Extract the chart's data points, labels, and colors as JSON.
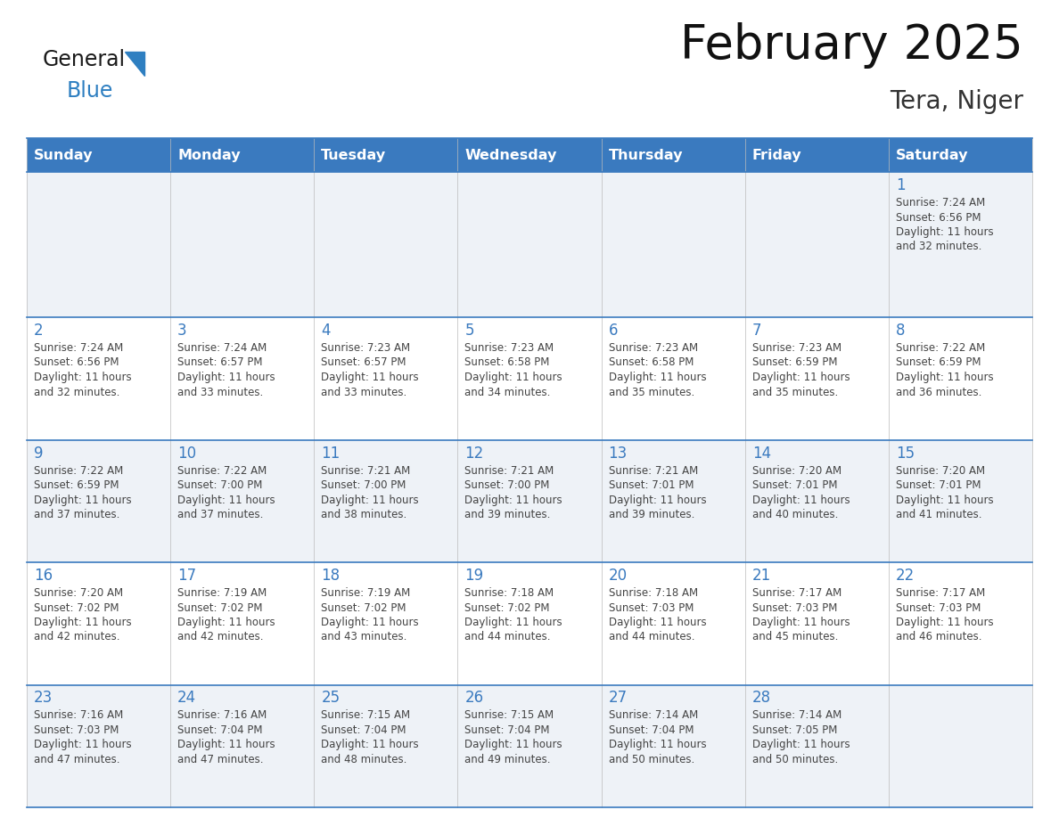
{
  "title": "February 2025",
  "subtitle": "Tera, Niger",
  "days_of_week": [
    "Sunday",
    "Monday",
    "Tuesday",
    "Wednesday",
    "Thursday",
    "Friday",
    "Saturday"
  ],
  "header_bg": "#3a7abf",
  "header_text": "#ffffff",
  "cell_bg_odd": "#eef2f7",
  "cell_bg_even": "#ffffff",
  "border_color": "#3a7abf",
  "day_number_color": "#3a7abf",
  "text_color": "#444444",
  "logo_black": "#1a1a1a",
  "logo_blue": "#2e7fc1",
  "calendar_data": [
    [
      null,
      null,
      null,
      null,
      null,
      null,
      1
    ],
    [
      2,
      3,
      4,
      5,
      6,
      7,
      8
    ],
    [
      9,
      10,
      11,
      12,
      13,
      14,
      15
    ],
    [
      16,
      17,
      18,
      19,
      20,
      21,
      22
    ],
    [
      23,
      24,
      25,
      26,
      27,
      28,
      null
    ]
  ],
  "sunrise_data": {
    "1": "7:24 AM",
    "2": "7:24 AM",
    "3": "7:24 AM",
    "4": "7:23 AM",
    "5": "7:23 AM",
    "6": "7:23 AM",
    "7": "7:23 AM",
    "8": "7:22 AM",
    "9": "7:22 AM",
    "10": "7:22 AM",
    "11": "7:21 AM",
    "12": "7:21 AM",
    "13": "7:21 AM",
    "14": "7:20 AM",
    "15": "7:20 AM",
    "16": "7:20 AM",
    "17": "7:19 AM",
    "18": "7:19 AM",
    "19": "7:18 AM",
    "20": "7:18 AM",
    "21": "7:17 AM",
    "22": "7:17 AM",
    "23": "7:16 AM",
    "24": "7:16 AM",
    "25": "7:15 AM",
    "26": "7:15 AM",
    "27": "7:14 AM",
    "28": "7:14 AM"
  },
  "sunset_data": {
    "1": "6:56 PM",
    "2": "6:56 PM",
    "3": "6:57 PM",
    "4": "6:57 PM",
    "5": "6:58 PM",
    "6": "6:58 PM",
    "7": "6:59 PM",
    "8": "6:59 PM",
    "9": "6:59 PM",
    "10": "7:00 PM",
    "11": "7:00 PM",
    "12": "7:00 PM",
    "13": "7:01 PM",
    "14": "7:01 PM",
    "15": "7:01 PM",
    "16": "7:02 PM",
    "17": "7:02 PM",
    "18": "7:02 PM",
    "19": "7:02 PM",
    "20": "7:03 PM",
    "21": "7:03 PM",
    "22": "7:03 PM",
    "23": "7:03 PM",
    "24": "7:04 PM",
    "25": "7:04 PM",
    "26": "7:04 PM",
    "27": "7:04 PM",
    "28": "7:05 PM"
  },
  "daylight_data": {
    "1": "11 hours and 32 minutes.",
    "2": "11 hours and 32 minutes.",
    "3": "11 hours and 33 minutes.",
    "4": "11 hours and 33 minutes.",
    "5": "11 hours and 34 minutes.",
    "6": "11 hours and 35 minutes.",
    "7": "11 hours and 35 minutes.",
    "8": "11 hours and 36 minutes.",
    "9": "11 hours and 37 minutes.",
    "10": "11 hours and 37 minutes.",
    "11": "11 hours and 38 minutes.",
    "12": "11 hours and 39 minutes.",
    "13": "11 hours and 39 minutes.",
    "14": "11 hours and 40 minutes.",
    "15": "11 hours and 41 minutes.",
    "16": "11 hours and 42 minutes.",
    "17": "11 hours and 42 minutes.",
    "18": "11 hours and 43 minutes.",
    "19": "11 hours and 44 minutes.",
    "20": "11 hours and 44 minutes.",
    "21": "11 hours and 45 minutes.",
    "22": "11 hours and 46 minutes.",
    "23": "11 hours and 47 minutes.",
    "24": "11 hours and 47 minutes.",
    "25": "11 hours and 48 minutes.",
    "26": "11 hours and 49 minutes.",
    "27": "11 hours and 50 minutes.",
    "28": "11 hours and 50 minutes."
  }
}
